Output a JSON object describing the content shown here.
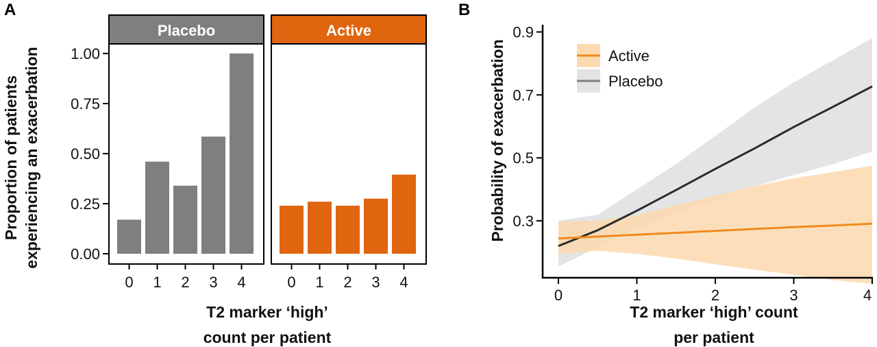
{
  "colors": {
    "placebo_bar": "#7f7f7f",
    "active_bar": "#e0650f",
    "placebo_line": "#2b2b2b",
    "active_line": "#f08a1c",
    "placebo_band": "#e3e3e3",
    "active_band": "#fcd9ae"
  },
  "chart_data": [
    {
      "panel": "A",
      "type": "bar",
      "facets": [
        "Placebo",
        "Active"
      ],
      "categories": [
        "0",
        "1",
        "2",
        "3",
        "4"
      ],
      "series": [
        {
          "name": "Placebo",
          "values": [
            0.17,
            0.46,
            0.34,
            0.585,
            1.0
          ]
        },
        {
          "name": "Active",
          "values": [
            0.24,
            0.26,
            0.24,
            0.275,
            0.395
          ]
        }
      ],
      "ylabel_line1": "Proportion of patients",
      "ylabel_line2": "experiencing an exacerbation",
      "xlabel_line1": "T2 marker ‘high’",
      "xlabel_line2": "count per patient",
      "ylim": [
        0,
        1.1
      ],
      "yticks": [
        "0.00",
        "0.25",
        "0.50",
        "0.75",
        "1.00"
      ],
      "ytick_values": [
        0,
        0.25,
        0.5,
        0.75,
        1.0
      ]
    },
    {
      "panel": "B",
      "type": "line",
      "x": [
        0,
        0.5,
        1,
        1.5,
        2,
        2.5,
        3,
        3.5,
        4
      ],
      "series": [
        {
          "name": "Active",
          "values": [
            0.244,
            0.25,
            0.256,
            0.262,
            0.268,
            0.274,
            0.28,
            0.285,
            0.291
          ],
          "lower": [
            0.195,
            0.205,
            0.195,
            0.18,
            0.162,
            0.145,
            0.128,
            0.112,
            0.1
          ],
          "upper": [
            0.298,
            0.3,
            0.318,
            0.35,
            0.38,
            0.41,
            0.435,
            0.455,
            0.475
          ]
        },
        {
          "name": "Placebo",
          "values": [
            0.22,
            0.27,
            0.332,
            0.398,
            0.465,
            0.53,
            0.598,
            0.662,
            0.727
          ],
          "lower": [
            0.155,
            0.215,
            0.275,
            0.325,
            0.37,
            0.41,
            0.445,
            0.48,
            0.52
          ],
          "upper": [
            0.3,
            0.32,
            0.4,
            0.48,
            0.57,
            0.66,
            0.74,
            0.81,
            0.88
          ]
        }
      ],
      "ylabel": "Probability of exacerbation",
      "xlabel_line1": "T2 marker ‘high’ count",
      "xlabel_line2": "per patient",
      "xlim": [
        0,
        4
      ],
      "ylim": [
        0.1,
        0.93
      ],
      "xticks": [
        "0",
        "1",
        "2",
        "3",
        "4"
      ],
      "xtick_values": [
        0,
        1,
        2,
        3,
        4
      ],
      "yticks": [
        "0.3",
        "0.5",
        "0.7",
        "0.9"
      ],
      "ytick_values": [
        0.3,
        0.5,
        0.7,
        0.9
      ],
      "legend_position": "top-left"
    }
  ]
}
